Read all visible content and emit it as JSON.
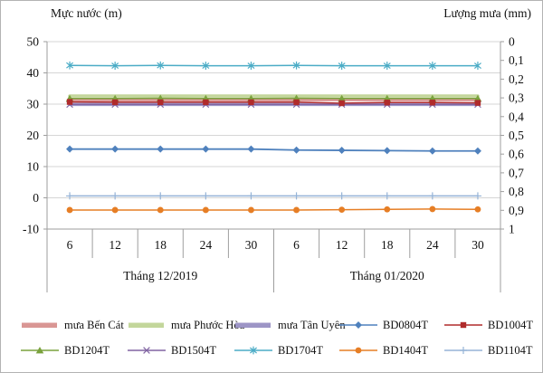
{
  "chart_data": {
    "type": "line",
    "title": "",
    "left_axis": {
      "label": "Mực nước (m)",
      "ticks": [
        50,
        40,
        30,
        20,
        10,
        0,
        -10
      ],
      "range": [
        -10,
        50
      ]
    },
    "right_axis": {
      "label": "Lượng mưa (mm)",
      "tick_labels": [
        "0",
        "0,1",
        "0,2",
        "0,3",
        "0,4",
        "0,5",
        "0,6",
        "0,7",
        "0,8",
        "0,9",
        "1"
      ],
      "range": [
        0,
        1
      ],
      "inverted": true
    },
    "x_axis": {
      "day_labels": [
        "6",
        "12",
        "18",
        "24",
        "30",
        "6",
        "12",
        "18",
        "24",
        "30"
      ],
      "month_labels": [
        "Tháng 12/2019",
        "Tháng 01/2020"
      ]
    },
    "grid": true,
    "legend_position": "bottom",
    "series": [
      {
        "name": "mưa Phước Hòa",
        "axis": "right",
        "color": "#C3D69B",
        "marker": "none",
        "line_width": 3.5,
        "values": [
          0.29,
          0.29,
          0.29,
          0.29,
          0.29,
          0.29,
          0.29,
          0.29,
          0.29,
          0.29
        ]
      },
      {
        "name": "mưa Bến Cát",
        "axis": "right",
        "color": "#D99694",
        "marker": "none",
        "line_width": 3.5,
        "values": [
          0.31,
          0.31,
          0.31,
          0.31,
          0.31,
          0.31,
          0.31,
          0.31,
          0.31,
          0.31
        ]
      },
      {
        "name": "mưa Tân Uyên",
        "axis": "right",
        "color": "#9D95C6",
        "marker": "none",
        "line_width": 3.5,
        "values": [
          0.335,
          0.335,
          0.335,
          0.335,
          0.335,
          0.335,
          0.335,
          0.335,
          0.335,
          0.335
        ]
      },
      {
        "name": "BD1504T",
        "axis": "left",
        "color": "#8064A2",
        "marker": "x",
        "line_width": 1.3,
        "values": [
          29.9,
          29.9,
          29.9,
          29.9,
          29.9,
          29.9,
          29.9,
          29.9,
          29.9,
          29.9
        ]
      },
      {
        "name": "BD1204T",
        "axis": "left",
        "color": "#7AA23D",
        "marker": "triangle",
        "line_width": 1.5,
        "values": [
          31.8,
          31.8,
          31.9,
          31.8,
          31.8,
          31.9,
          31.8,
          31.8,
          31.8,
          31.8
        ]
      },
      {
        "name": "BD1004T",
        "axis": "left",
        "color": "#B02B2B",
        "marker": "square",
        "line_width": 1.5,
        "values": [
          30.7,
          30.6,
          30.6,
          30.6,
          30.6,
          30.6,
          30.3,
          30.5,
          30.5,
          30.4
        ]
      },
      {
        "name": "BD1704T",
        "axis": "left",
        "color": "#4BACC6",
        "marker": "star",
        "line_width": 1.5,
        "values": [
          42.4,
          42.3,
          42.4,
          42.3,
          42.3,
          42.4,
          42.3,
          42.3,
          42.3,
          42.3
        ]
      },
      {
        "name": "BD0804T",
        "axis": "left",
        "color": "#4F81BD",
        "marker": "diamond",
        "line_width": 1.8,
        "values": [
          15.6,
          15.6,
          15.6,
          15.6,
          15.6,
          15.3,
          15.2,
          15.1,
          15.0,
          15.0
        ]
      },
      {
        "name": "BD1104T",
        "axis": "left",
        "color": "#95B3D7",
        "marker": "plus",
        "line_width": 1.5,
        "values": [
          0.6,
          0.6,
          0.6,
          0.6,
          0.6,
          0.6,
          0.6,
          0.6,
          0.6,
          0.6
        ]
      },
      {
        "name": "BD1404T",
        "axis": "left",
        "color": "#E67E25",
        "marker": "circle",
        "line_width": 1.5,
        "values": [
          -3.9,
          -3.9,
          -3.9,
          -3.9,
          -3.9,
          -3.9,
          -3.8,
          -3.7,
          -3.6,
          -3.7
        ]
      }
    ]
  },
  "legend": {
    "items": [
      {
        "label": "mưa Bến Cát",
        "swatch": "bar"
      },
      {
        "label": "mưa Phước Hòa",
        "swatch": "bar"
      },
      {
        "label": "mưa Tân Uyên",
        "swatch": "bar"
      },
      {
        "label": "BD0804T",
        "swatch": "line"
      },
      {
        "label": "BD1004T",
        "swatch": "line"
      },
      {
        "label": "BD1204T",
        "swatch": "line"
      },
      {
        "label": "BD1504T",
        "swatch": "line"
      },
      {
        "label": "BD1704T",
        "swatch": "line"
      },
      {
        "label": "BD1404T",
        "swatch": "line"
      },
      {
        "label": "BD1104T",
        "swatch": "line"
      }
    ]
  },
  "colors": {
    "grid": "#d6d6d6",
    "axis": "#9e9e9e",
    "border": "#b3b3b3",
    "text": "#111111"
  }
}
